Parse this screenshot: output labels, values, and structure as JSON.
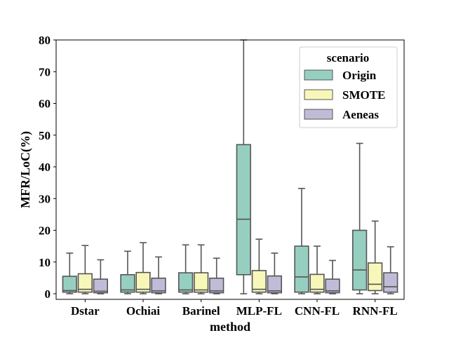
{
  "chart_data": {
    "type": "box",
    "xlabel": "method",
    "ylabel": "MFR/LoC(%)",
    "ylim": [
      0,
      80
    ],
    "yticks": [
      0,
      10,
      20,
      30,
      40,
      50,
      60,
      70,
      80
    ],
    "grid": false,
    "legend": {
      "title": "scenario",
      "placement": "top-right"
    },
    "categories": [
      "Dstar",
      "Ochiai",
      "Barinel",
      "MLP-FL",
      "CNN-FL",
      "RNN-FL"
    ],
    "series": [
      {
        "name": "Origin",
        "color": "#96cfc0",
        "boxes": [
          {
            "whislo": 0,
            "q1": 0.5,
            "med": 1.0,
            "q3": 5.5,
            "whishi": 12.8
          },
          {
            "whislo": 0,
            "q1": 0.5,
            "med": 1.2,
            "q3": 6.0,
            "whishi": 13.4
          },
          {
            "whislo": 0,
            "q1": 0.5,
            "med": 1.2,
            "q3": 6.6,
            "whishi": 15.4
          },
          {
            "whislo": 0,
            "q1": 6.0,
            "med": 23.5,
            "q3": 47.0,
            "whishi": 80
          },
          {
            "whislo": 0,
            "q1": 0.5,
            "med": 5.3,
            "q3": 15.0,
            "whishi": 33.2
          },
          {
            "whislo": 0,
            "q1": 1.2,
            "med": 7.5,
            "q3": 20.0,
            "whishi": 47.4
          }
        ]
      },
      {
        "name": "SMOTE",
        "color": "#f7f7b9",
        "boxes": [
          {
            "whislo": 0,
            "q1": 0.5,
            "med": 1.4,
            "q3": 6.3,
            "whishi": 15.2
          },
          {
            "whislo": 0,
            "q1": 0.5,
            "med": 1.4,
            "q3": 6.7,
            "whishi": 16.1
          },
          {
            "whislo": 0,
            "q1": 0.5,
            "med": 1.2,
            "q3": 6.6,
            "whishi": 15.4
          },
          {
            "whislo": 0,
            "q1": 0.5,
            "med": 1.4,
            "q3": 7.3,
            "whishi": 17.2
          },
          {
            "whislo": 0,
            "q1": 0.5,
            "med": 1.4,
            "q3": 6.1,
            "whishi": 15.0
          },
          {
            "whislo": 0,
            "q1": 1.0,
            "med": 3.0,
            "q3": 9.7,
            "whishi": 22.9
          }
        ]
      },
      {
        "name": "Aeneas",
        "color": "#c0bcd8",
        "boxes": [
          {
            "whislo": 0,
            "q1": 0.3,
            "med": 0.8,
            "q3": 4.6,
            "whishi": 10.7
          },
          {
            "whislo": 0,
            "q1": 0.3,
            "med": 0.9,
            "q3": 4.9,
            "whishi": 11.6
          },
          {
            "whislo": 0,
            "q1": 0.3,
            "med": 0.9,
            "q3": 4.9,
            "whishi": 11.2
          },
          {
            "whislo": 0,
            "q1": 0.3,
            "med": 0.9,
            "q3": 5.6,
            "whishi": 12.8
          },
          {
            "whislo": 0,
            "q1": 0.3,
            "med": 0.9,
            "q3": 4.6,
            "whishi": 10.5
          },
          {
            "whislo": 0,
            "q1": 0.5,
            "med": 2.2,
            "q3": 6.6,
            "whishi": 14.8
          }
        ]
      }
    ]
  }
}
